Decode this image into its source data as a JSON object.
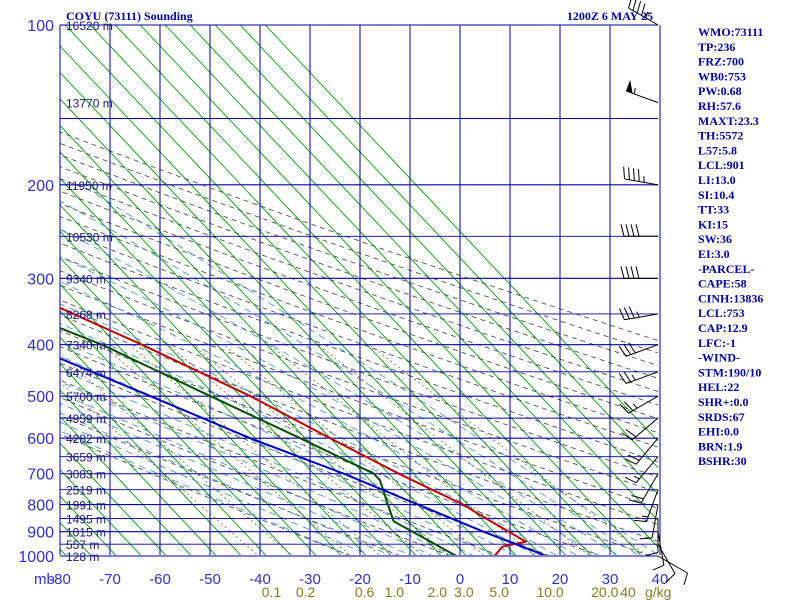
{
  "chart_data": {
    "type": "line",
    "title": "COYU (73111) Sounding",
    "time": "1200Z  6 MAY 25",
    "pressure_axis_label": "mb",
    "pressure_levels": [
      100,
      200,
      300,
      400,
      500,
      600,
      700,
      800,
      900,
      1000
    ],
    "temp_ticks": [
      -80,
      -70,
      -60,
      -50,
      -40,
      -30,
      -20,
      -10,
      0,
      10,
      20,
      30,
      40
    ],
    "temp_tick_labels": [
      "-80",
      "-70",
      "-60",
      "-50",
      "-40",
      "-30",
      "-20",
      "-10",
      "0",
      "10",
      "20",
      "30",
      "40"
    ],
    "mixing_ratio_label": "g/kg",
    "mixing_ratio_labels": [
      "0.1",
      "0.2",
      "0.6",
      "1.0",
      "2.0",
      "3.0",
      "5.0",
      "10.0",
      "20.0",
      "40"
    ],
    "mixing_ratio_values": [
      0.1,
      0.2,
      0.6,
      1.0,
      2.0,
      3.0,
      5.0,
      10.0,
      20.0,
      40
    ],
    "height_labels": [
      {
        "p": 100,
        "text": "16520 m"
      },
      {
        "p": 140,
        "text": "13770 m"
      },
      {
        "p": 200,
        "text": "11950 m"
      },
      {
        "p": 250,
        "text": "10530 m"
      },
      {
        "p": 300,
        "text": "9340 m"
      },
      {
        "p": 350,
        "text": "8268 m"
      },
      {
        "p": 400,
        "text": "7340 m"
      },
      {
        "p": 450,
        "text": "6474 m"
      },
      {
        "p": 500,
        "text": "5700 m"
      },
      {
        "p": 550,
        "text": "4959 m"
      },
      {
        "p": 600,
        "text": "4282 m"
      },
      {
        "p": 650,
        "text": "3659 m"
      },
      {
        "p": 700,
        "text": "3083 m"
      },
      {
        "p": 750,
        "text": "2519 m"
      },
      {
        "p": 800,
        "text": "1991 m"
      },
      {
        "p": 850,
        "text": "1495 m"
      },
      {
        "p": 900,
        "text": "1015 m"
      },
      {
        "p": 950,
        "text": "557 m"
      },
      {
        "p": 1000,
        "text": "128 m"
      }
    ],
    "series": [
      {
        "key": "temperature",
        "color": "#c00000",
        "points": [
          [
            100,
            -60
          ],
          [
            150,
            -57
          ],
          [
            200,
            -57
          ],
          [
            250,
            -55
          ],
          [
            300,
            -42
          ],
          [
            400,
            -25
          ],
          [
            500,
            -13
          ],
          [
            600,
            -5
          ],
          [
            700,
            2
          ],
          [
            800,
            9
          ],
          [
            850,
            11
          ],
          [
            940,
            14.6
          ],
          [
            960,
            9
          ],
          [
            1000,
            5.6
          ]
        ]
      },
      {
        "key": "dewpoint",
        "color": "#005000",
        "points": [
          [
            170,
            -80
          ],
          [
            200,
            -77
          ],
          [
            250,
            -67
          ],
          [
            300,
            -54
          ],
          [
            400,
            -33
          ],
          [
            500,
            -21
          ],
          [
            600,
            -11
          ],
          [
            700,
            -3
          ],
          [
            720,
            -3
          ],
          [
            800,
            -6
          ],
          [
            860,
            -8
          ],
          [
            1000,
            -2
          ]
        ]
      },
      {
        "key": "parcel",
        "color": "#0000c0",
        "points": [
          [
            195,
            -80
          ],
          [
            300,
            -64
          ],
          [
            400,
            -48
          ],
          [
            500,
            -33
          ],
          [
            600,
            -21
          ],
          [
            700,
            -9
          ],
          [
            800,
            0
          ],
          [
            900,
            8
          ],
          [
            1000,
            16
          ]
        ]
      }
    ],
    "wind_barbs": [
      {
        "p": 100,
        "dir": 300,
        "spd": 45
      },
      {
        "p": 140,
        "dir": 290,
        "spd": 55
      },
      {
        "p": 200,
        "dir": 280,
        "spd": 45
      },
      {
        "p": 250,
        "dir": 270,
        "spd": 40
      },
      {
        "p": 300,
        "dir": 270,
        "spd": 40
      },
      {
        "p": 350,
        "dir": 260,
        "spd": 35
      },
      {
        "p": 400,
        "dir": 250,
        "spd": 30
      },
      {
        "p": 450,
        "dir": 250,
        "spd": 25
      },
      {
        "p": 500,
        "dir": 240,
        "spd": 25
      },
      {
        "p": 550,
        "dir": 230,
        "spd": 20
      },
      {
        "p": 600,
        "dir": 220,
        "spd": 20
      },
      {
        "p": 650,
        "dir": 220,
        "spd": 15
      },
      {
        "p": 700,
        "dir": 210,
        "spd": 20
      },
      {
        "p": 750,
        "dir": 200,
        "spd": 15
      },
      {
        "p": 800,
        "dir": 190,
        "spd": 10
      },
      {
        "p": 850,
        "dir": 180,
        "spd": 10
      },
      {
        "p": 900,
        "dir": 170,
        "spd": 10
      },
      {
        "p": 950,
        "dir": 150,
        "spd": 10
      },
      {
        "p": 1000,
        "dir": 120,
        "spd": 10
      }
    ],
    "indices": [
      "WMO:73111",
      "TP:236",
      "FRZ:700",
      "WB0:753",
      "PW:0.68",
      "RH:57.6",
      "MAXT:23.3",
      "TH:5572",
      "L57:5.8",
      "LCL:901",
      "LI:13.0",
      "SI:10.4",
      "TT:33",
      "KI:15",
      "SW:36",
      "EI:3.0",
      "-PARCEL-",
      "CAPE:58",
      "CINH:13836",
      "LCL:753",
      "CAP:12.9",
      "LFC:-1",
      "-WIND-",
      "STM:190/10",
      "HEL:22",
      "SHR+:0.0",
      "SRDS:67",
      "EHI:0.0",
      "BRN:1.9",
      "BSHR:30"
    ]
  },
  "colors": {
    "grid": "#0000a0",
    "isotherm": "#00a000",
    "dry_adiabat": "#404040",
    "moist_adiabat": "#3a8ad0",
    "text": "#0000a0"
  }
}
